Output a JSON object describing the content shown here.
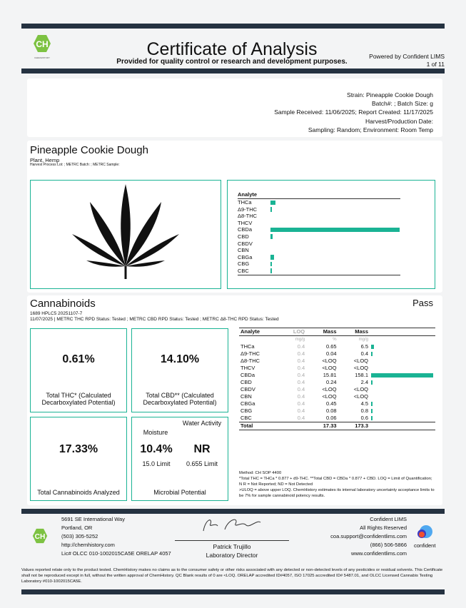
{
  "header": {
    "title": "Certificate of Analysis",
    "subtitle": "Provided for quality control or research and development purposes.",
    "powered_by": "Powered by Confident LIMS",
    "page": "1 of 11",
    "logo_text": "CH",
    "logo_caption": "CHEMHISTORY"
  },
  "info": [
    "Strain: Pineapple Cookie Dough",
    "Batch#: ; Batch Size: g",
    "Sample Received: 11/06/2025; Report Created: 11/17/2025",
    "Harvest/Production Date:",
    "Sampling: Random; Environment: Room Temp"
  ],
  "product": {
    "name": "Pineapple Cookie Dough",
    "type": "Plant, Hemp",
    "meta": "Harvest Process Lot: ; METRC Batch: ; METRC Sample:"
  },
  "accent_color": "#1ab394",
  "chart_data": {
    "type": "bar",
    "orientation": "horizontal",
    "header": "Analyte",
    "categories": [
      "THCa",
      "Δ9-THC",
      "Δ8-THC",
      "THCV",
      "CBDa",
      "CBD",
      "CBDV",
      "CBN",
      "CBGa",
      "CBG",
      "CBC"
    ],
    "values": [
      6.5,
      0.4,
      0,
      0,
      158.1,
      2.4,
      0,
      0,
      4.5,
      0.8,
      0.6
    ],
    "unit": "mg/g"
  },
  "cannabinoids": {
    "title": "Cannabinoids",
    "status": "Pass",
    "line1": "1689 HPLC5 20251107-7",
    "line2": "11/07/2025 | METRC THC RPD Status: Tested ; METRC CBD RPD Status: Tested ; METRC Δ8-THC RPD Status: Tested",
    "total_thc": {
      "value": "0.61%",
      "label": "Total THC* (Calculated Decarboxylated Potential)"
    },
    "total_cbd": {
      "value": "14.10%",
      "label": "Total CBD** (Calculated Decarboxylated Potential)"
    },
    "total_cann": {
      "value": "17.33%",
      "label": "Total Cannabinoids Analyzed"
    },
    "microbial": {
      "moisture_label": "Moisture",
      "moisture_value": "10.4%",
      "moisture_limit": "15.0 Limit",
      "wa_label": "Water Activity",
      "wa_value": "NR",
      "wa_limit": "0.655 Limit",
      "label": "Microbial Potential"
    },
    "table": {
      "headers": [
        "Analyte",
        "LOQ",
        "Mass",
        "Mass"
      ],
      "units": [
        "",
        "mg/g",
        "%",
        "mg/g"
      ],
      "rows": [
        [
          "THCa",
          "0.4",
          "0.65",
          "6.5"
        ],
        [
          "Δ9-THC",
          "0.4",
          "0.04",
          "0.4"
        ],
        [
          "Δ8-THC",
          "0.4",
          "<LOQ",
          "<LOQ"
        ],
        [
          "THCV",
          "0.4",
          "<LOQ",
          "<LOQ"
        ],
        [
          "CBDa",
          "0.4",
          "15.81",
          "158.1"
        ],
        [
          "CBD",
          "0.4",
          "0.24",
          "2.4"
        ],
        [
          "CBDV",
          "0.4",
          "<LOQ",
          "<LOQ"
        ],
        [
          "CBN",
          "0.4",
          "<LOQ",
          "<LOQ"
        ],
        [
          "CBGa",
          "0.4",
          "0.45",
          "4.5"
        ],
        [
          "CBG",
          "0.4",
          "0.08",
          "0.8"
        ],
        [
          "CBC",
          "0.4",
          "0.06",
          "0.6"
        ]
      ],
      "total": [
        "Total",
        "",
        "17.33",
        "173.3"
      ]
    },
    "notes": [
      "Method: CH SOP 4400",
      "*Total THC = THCa * 0.877 + d9-THC. **Total CBD = CBDa * 0.877 + CBD. LOQ = Limit of Quantification; N R = Not Reported; ND = Not Detected",
      ">ULOQ = above upper LOQ. ChemHistory estimates its internal laboratory uncertainty acceptance limits to be 7% for sample cannabinoid potency results."
    ]
  },
  "footer": {
    "address": [
      "5691 SE International Way",
      "Portland, OR",
      "(503) 305-5252",
      "http://chemhistory.com",
      "Lic# OLCC 010-1002015CA5E ORELAP 4057"
    ],
    "signer": "Patrick Trujillo",
    "signer_title": "Laboratory Director",
    "right": [
      "Confident LIMS",
      "All Rights Reserved",
      "coa.support@confidentlims.com",
      "(866) 506-5866",
      "www.confidentlims.com"
    ],
    "confident_logo": "confident",
    "disclaimer": "Values reported relate only to the product tested. ChemHistory makes no claims as to the consumer safety or other risks associated with any detected or non-detected levels of any pesticides or residual solvents. This Certificate shall not be reproduced except in full, without the written approval of ChemHistory. QC Blank results of 0 are <LOQ. ORELAP accredited ID#4057, ISO 17025 accredited ID# 5487.01, and OLCC Licensed Cannabis Testing Laboratory #010-1002015CA5E."
  }
}
